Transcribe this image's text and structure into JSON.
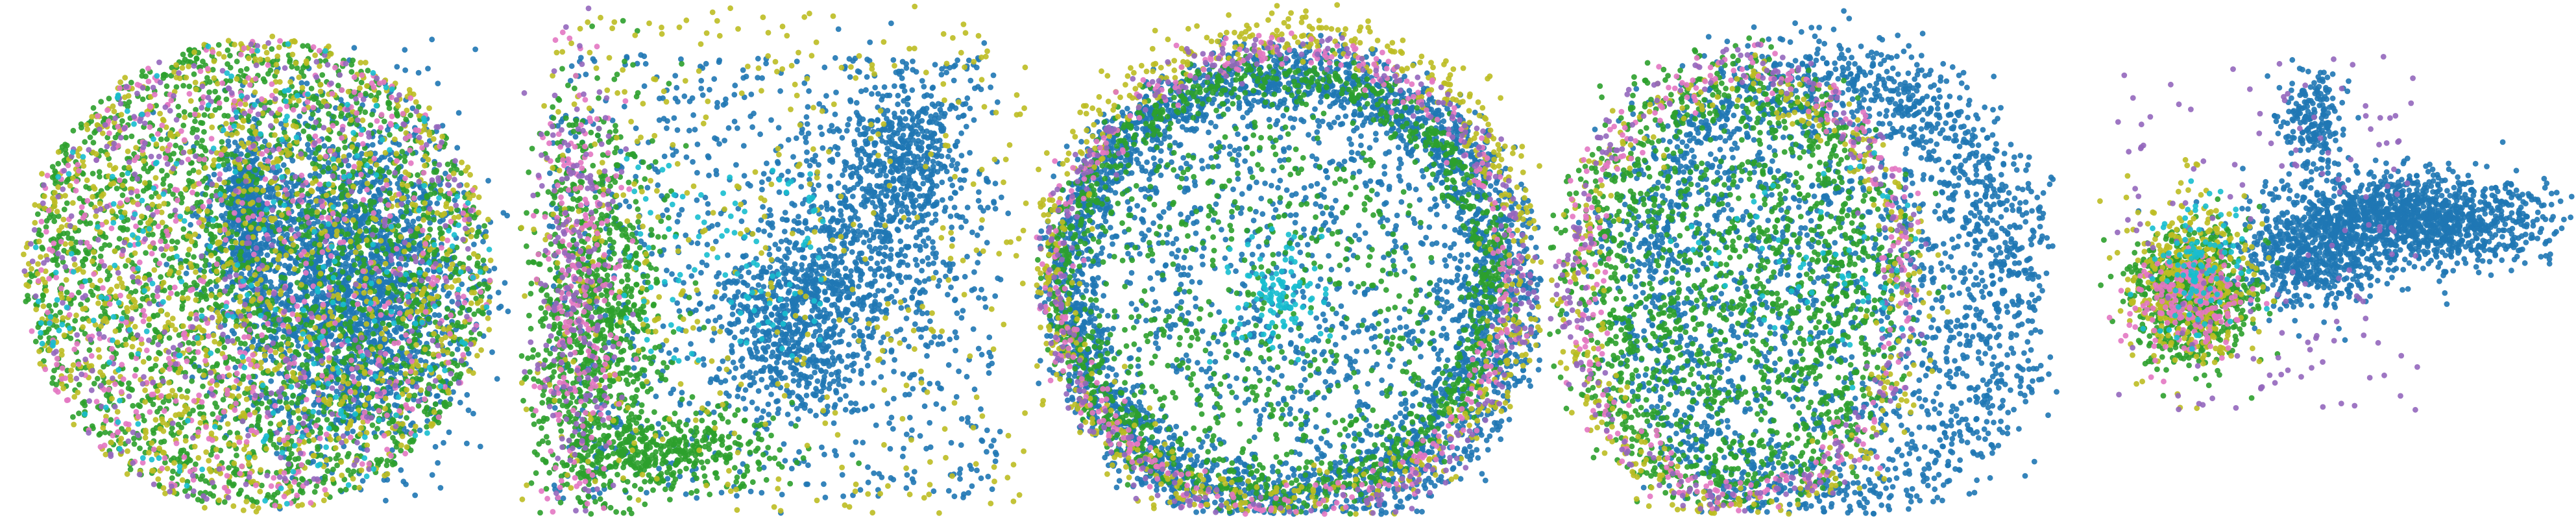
{
  "palette": {
    "c0": "#1f77b4",
    "c1": "#2ca02c",
    "c2": "#bcbd22",
    "c3": "#e377c2",
    "c4": "#9467bd",
    "c5": "#17becf"
  },
  "chart_data": [
    {
      "type": "scatter",
      "title": "",
      "shape": "disk",
      "xlim": [
        0,
        1
      ],
      "ylim": [
        0,
        1
      ],
      "grid": false,
      "series_colors": [
        "c0",
        "c1",
        "c2",
        "c3",
        "c4",
        "c5"
      ],
      "clusters": [
        {
          "color": "c0",
          "kind": "blob",
          "cx": 0.68,
          "cy": 0.55,
          "sx": 0.12,
          "sy": 0.16,
          "n": 2300
        },
        {
          "color": "c0",
          "kind": "blob",
          "cx": 0.48,
          "cy": 0.4,
          "sx": 0.035,
          "sy": 0.07,
          "n": 450
        },
        {
          "color": "c1",
          "kind": "disk",
          "cx": 0.5,
          "cy": 0.53,
          "r": 0.46,
          "n": 2400
        },
        {
          "color": "c2",
          "kind": "disk",
          "cx": 0.5,
          "cy": 0.53,
          "r": 0.47,
          "n": 1200
        },
        {
          "color": "c3",
          "kind": "disk",
          "cx": 0.5,
          "cy": 0.53,
          "r": 0.46,
          "n": 600
        },
        {
          "color": "c4",
          "kind": "disk",
          "cx": 0.5,
          "cy": 0.53,
          "r": 0.46,
          "n": 400
        },
        {
          "color": "c5",
          "kind": "disk",
          "cx": 0.5,
          "cy": 0.53,
          "r": 0.46,
          "n": 250
        }
      ]
    },
    {
      "type": "scatter",
      "title": "",
      "shape": "branches",
      "xlim": [
        0,
        1
      ],
      "ylim": [
        0,
        1
      ],
      "grid": false,
      "series_colors": [
        "c0",
        "c1",
        "c2",
        "c3",
        "c4",
        "c5"
      ],
      "clusters": [
        {
          "color": "c0",
          "kind": "uniform",
          "x0": 0.06,
          "x1": 0.95,
          "y0": 0.1,
          "y1": 0.97,
          "n": 900
        },
        {
          "color": "c0",
          "kind": "blob",
          "cx": 0.55,
          "cy": 0.62,
          "sx": 0.08,
          "sy": 0.1,
          "n": 700
        },
        {
          "color": "c0",
          "kind": "blob",
          "cx": 0.7,
          "cy": 0.42,
          "sx": 0.08,
          "sy": 0.12,
          "n": 500
        },
        {
          "color": "c0",
          "kind": "blob",
          "cx": 0.78,
          "cy": 0.3,
          "sx": 0.05,
          "sy": 0.08,
          "n": 300
        },
        {
          "color": "c1",
          "kind": "blob",
          "cx": 0.15,
          "cy": 0.62,
          "sx": 0.07,
          "sy": 0.2,
          "n": 1000
        },
        {
          "color": "c1",
          "kind": "blob",
          "cx": 0.3,
          "cy": 0.87,
          "sx": 0.12,
          "sy": 0.04,
          "n": 400
        },
        {
          "color": "c2",
          "kind": "uniform",
          "x0": 0.0,
          "x1": 1.0,
          "y0": 0.0,
          "y1": 1.0,
          "n": 450
        },
        {
          "color": "c3",
          "kind": "blob",
          "cx": 0.12,
          "cy": 0.58,
          "sx": 0.04,
          "sy": 0.26,
          "n": 250
        },
        {
          "color": "c4",
          "kind": "blob",
          "cx": 0.11,
          "cy": 0.55,
          "sx": 0.04,
          "sy": 0.28,
          "n": 220
        },
        {
          "color": "c5",
          "kind": "uniform",
          "x0": 0.2,
          "x1": 0.6,
          "y0": 0.3,
          "y1": 0.7,
          "n": 100
        }
      ]
    },
    {
      "type": "scatter",
      "title": "",
      "shape": "rings",
      "xlim": [
        0,
        1
      ],
      "ylim": [
        0,
        1
      ],
      "grid": false,
      "series_colors": [
        "c0",
        "c1",
        "c2",
        "c3",
        "c4",
        "c5"
      ],
      "clusters": [
        {
          "color": "c0",
          "kind": "ring",
          "cx": 0.49,
          "cy": 0.55,
          "rx": 0.4,
          "ry": 0.4,
          "w": 0.03,
          "n": 1800
        },
        {
          "color": "c0",
          "kind": "ring",
          "cx": 0.51,
          "cy": 0.56,
          "rx": 0.46,
          "ry": 0.45,
          "w": 0.025,
          "n": 1200
        },
        {
          "color": "c0",
          "kind": "disk",
          "cx": 0.55,
          "cy": 0.5,
          "r": 0.37,
          "n": 900
        },
        {
          "color": "c1",
          "kind": "ring",
          "cx": 0.48,
          "cy": 0.55,
          "rx": 0.42,
          "ry": 0.41,
          "w": 0.025,
          "n": 1200
        },
        {
          "color": "c1",
          "kind": "disk",
          "cx": 0.45,
          "cy": 0.58,
          "r": 0.35,
          "n": 500
        },
        {
          "color": "c2",
          "kind": "ring",
          "cx": 0.5,
          "cy": 0.52,
          "rx": 0.47,
          "ry": 0.47,
          "w": 0.03,
          "n": 700
        },
        {
          "color": "c3",
          "kind": "ring",
          "cx": 0.49,
          "cy": 0.54,
          "rx": 0.45,
          "ry": 0.45,
          "w": 0.02,
          "n": 400
        },
        {
          "color": "c4",
          "kind": "ring",
          "cx": 0.5,
          "cy": 0.55,
          "rx": 0.46,
          "ry": 0.46,
          "w": 0.02,
          "n": 350
        },
        {
          "color": "c5",
          "kind": "blob",
          "cx": 0.48,
          "cy": 0.57,
          "sx": 0.05,
          "sy": 0.05,
          "n": 100
        }
      ]
    },
    {
      "type": "scatter",
      "title": "",
      "shape": "shell",
      "xlim": [
        0,
        1
      ],
      "ylim": [
        0,
        1
      ],
      "grid": false,
      "series_colors": [
        "c0",
        "c1",
        "c2",
        "c3",
        "c4",
        "c5"
      ],
      "clusters": [
        {
          "color": "c0",
          "kind": "ring",
          "cx": 0.55,
          "cy": 0.55,
          "rx": 0.38,
          "ry": 0.42,
          "w": 0.05,
          "n": 1600
        },
        {
          "color": "c0",
          "kind": "disk",
          "cx": 0.55,
          "cy": 0.48,
          "r": 0.36,
          "n": 1200
        },
        {
          "color": "c1",
          "kind": "ring",
          "cx": 0.36,
          "cy": 0.55,
          "rx": 0.28,
          "ry": 0.38,
          "w": 0.05,
          "n": 1100
        },
        {
          "color": "c1",
          "kind": "disk",
          "cx": 0.35,
          "cy": 0.55,
          "r": 0.25,
          "n": 600
        },
        {
          "color": "c2",
          "kind": "ring",
          "cx": 0.38,
          "cy": 0.58,
          "rx": 0.33,
          "ry": 0.42,
          "w": 0.03,
          "n": 400
        },
        {
          "color": "c3",
          "kind": "ring",
          "cx": 0.38,
          "cy": 0.55,
          "rx": 0.32,
          "ry": 0.42,
          "w": 0.025,
          "n": 300
        },
        {
          "color": "c4",
          "kind": "ring",
          "cx": 0.37,
          "cy": 0.55,
          "rx": 0.33,
          "ry": 0.42,
          "w": 0.02,
          "n": 250
        },
        {
          "color": "c5",
          "kind": "blob",
          "cx": 0.5,
          "cy": 0.5,
          "sx": 0.1,
          "sy": 0.1,
          "n": 60
        }
      ]
    },
    {
      "type": "scatter",
      "title": "",
      "shape": "comet",
      "xlim": [
        0,
        1
      ],
      "ylim": [
        0,
        1
      ],
      "grid": false,
      "series_colors": [
        "c0",
        "c1",
        "c2",
        "c3",
        "c4",
        "c5"
      ],
      "clusters": [
        {
          "color": "c0",
          "kind": "blob",
          "cx": 0.68,
          "cy": 0.42,
          "sx": 0.13,
          "sy": 0.045,
          "n": 1300
        },
        {
          "color": "c0",
          "kind": "blob",
          "cx": 0.48,
          "cy": 0.5,
          "sx": 0.07,
          "sy": 0.05,
          "n": 500
        },
        {
          "color": "c0",
          "kind": "blob",
          "cx": 0.49,
          "cy": 0.23,
          "sx": 0.03,
          "sy": 0.05,
          "n": 200
        },
        {
          "color": "c1",
          "kind": "blob",
          "cx": 0.25,
          "cy": 0.57,
          "sx": 0.06,
          "sy": 0.06,
          "n": 800
        },
        {
          "color": "c2",
          "kind": "blob",
          "cx": 0.25,
          "cy": 0.55,
          "sx": 0.06,
          "sy": 0.08,
          "n": 400
        },
        {
          "color": "c3",
          "kind": "blob",
          "cx": 0.24,
          "cy": 0.58,
          "sx": 0.05,
          "sy": 0.05,
          "n": 200
        },
        {
          "color": "c4",
          "kind": "uniform",
          "x0": 0.1,
          "x1": 0.7,
          "y0": 0.1,
          "y1": 0.8,
          "n": 150
        },
        {
          "color": "c5",
          "kind": "blob",
          "cx": 0.27,
          "cy": 0.5,
          "sx": 0.05,
          "sy": 0.07,
          "n": 100
        }
      ]
    }
  ]
}
